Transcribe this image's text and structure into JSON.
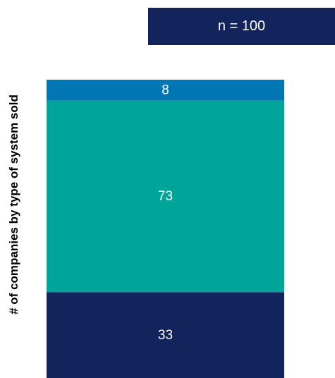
{
  "chart_data": {
    "type": "bar",
    "stacked": true,
    "categories": [
      ""
    ],
    "series": [
      {
        "values": [
          33
        ],
        "color": "#13235b"
      },
      {
        "values": [
          73
        ],
        "color": "#00a499"
      },
      {
        "values": [
          8
        ],
        "color": "#0077b3"
      }
    ],
    "ylabel": "# of companies by type of system sold",
    "annotation": "n = 100",
    "ylim": [
      0,
      114
    ],
    "grid": false,
    "legend": "none"
  },
  "colors": {
    "badge": "#13235b"
  }
}
